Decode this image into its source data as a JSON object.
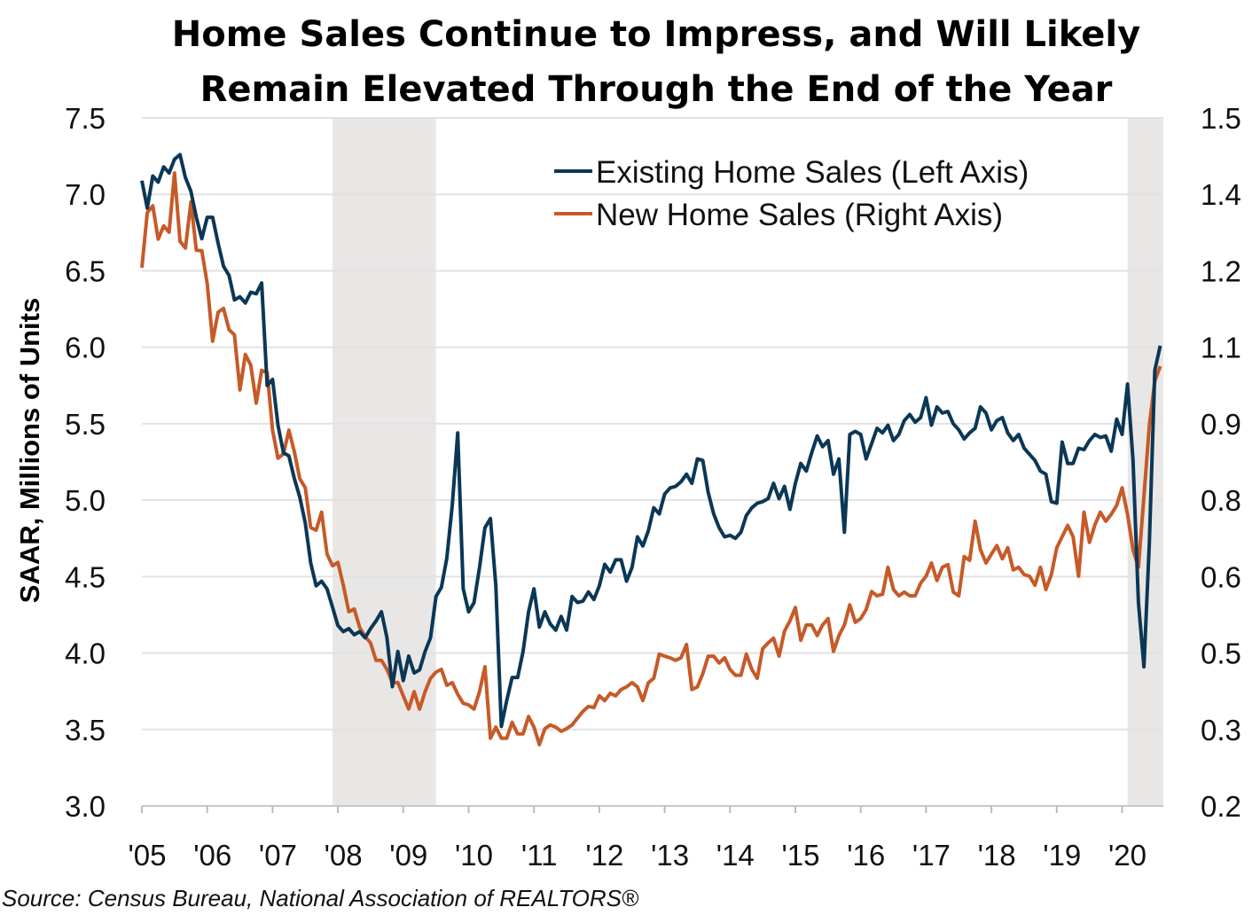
{
  "chart_data": {
    "type": "line",
    "title": [
      "Home Sales Continue to Impress, and Will Likely",
      "Remain Elevated Through the End of the Year"
    ],
    "ylabel": "SAAR, Millions of Units",
    "source": "Source: Census Bureau, National Association of REALTORS®",
    "ylim_left": [
      3.0,
      7.5
    ],
    "ylim_right": [
      0.2,
      1.5
    ],
    "left_ticks": [
      "7.5",
      "7.0",
      "6.5",
      "6.0",
      "5.5",
      "5.0",
      "4.5",
      "4.0",
      "3.5",
      "3.0"
    ],
    "right_ticks": [
      "1.5",
      "1.4",
      "1.2",
      "1.1",
      "0.9",
      "0.8",
      "0.6",
      "0.5",
      "0.3",
      "0.2"
    ],
    "x_ticks": [
      "'05",
      "'06",
      "'07",
      "'08",
      "'09",
      "'10",
      "'11",
      "'12",
      "'13",
      "'14",
      "'15",
      "'16",
      "'17",
      "'18",
      "'19",
      "'20"
    ],
    "grid": true,
    "legend_position": "top-right",
    "recessions": [
      [
        "2007-12",
        "2009-06"
      ],
      [
        "2020-02",
        "2020-08"
      ]
    ],
    "colors": {
      "existing": "#0b3756",
      "new": "#c65a28",
      "recession": "#e9e7e5",
      "grid": "#e2e2e2"
    },
    "x": [
      "2005-01",
      "2005-02",
      "2005-03",
      "2005-04",
      "2005-05",
      "2005-06",
      "2005-07",
      "2005-08",
      "2005-09",
      "2005-10",
      "2005-11",
      "2005-12",
      "2006-01",
      "2006-02",
      "2006-03",
      "2006-04",
      "2006-05",
      "2006-06",
      "2006-07",
      "2006-08",
      "2006-09",
      "2006-10",
      "2006-11",
      "2006-12",
      "2007-01",
      "2007-02",
      "2007-03",
      "2007-04",
      "2007-05",
      "2007-06",
      "2007-07",
      "2007-08",
      "2007-09",
      "2007-10",
      "2007-11",
      "2007-12",
      "2008-01",
      "2008-02",
      "2008-03",
      "2008-04",
      "2008-05",
      "2008-06",
      "2008-07",
      "2008-08",
      "2008-09",
      "2008-10",
      "2008-11",
      "2008-12",
      "2009-01",
      "2009-02",
      "2009-03",
      "2009-04",
      "2009-05",
      "2009-06",
      "2009-07",
      "2009-08",
      "2009-09",
      "2009-10",
      "2009-11",
      "2009-12",
      "2010-01",
      "2010-02",
      "2010-03",
      "2010-04",
      "2010-05",
      "2010-06",
      "2010-07",
      "2010-08",
      "2010-09",
      "2010-10",
      "2010-11",
      "2010-12",
      "2011-01",
      "2011-02",
      "2011-03",
      "2011-04",
      "2011-05",
      "2011-06",
      "2011-07",
      "2011-08",
      "2011-09",
      "2011-10",
      "2011-11",
      "2011-12",
      "2012-01",
      "2012-02",
      "2012-03",
      "2012-04",
      "2012-05",
      "2012-06",
      "2012-07",
      "2012-08",
      "2012-09",
      "2012-10",
      "2012-11",
      "2012-12",
      "2013-01",
      "2013-02",
      "2013-03",
      "2013-04",
      "2013-05",
      "2013-06",
      "2013-07",
      "2013-08",
      "2013-09",
      "2013-10",
      "2013-11",
      "2013-12",
      "2014-01",
      "2014-02",
      "2014-03",
      "2014-04",
      "2014-05",
      "2014-06",
      "2014-07",
      "2014-08",
      "2014-09",
      "2014-10",
      "2014-11",
      "2014-12",
      "2015-01",
      "2015-02",
      "2015-03",
      "2015-04",
      "2015-05",
      "2015-06",
      "2015-07",
      "2015-08",
      "2015-09",
      "2015-10",
      "2015-11",
      "2015-12",
      "2016-01",
      "2016-02",
      "2016-03",
      "2016-04",
      "2016-05",
      "2016-06",
      "2016-07",
      "2016-08",
      "2016-09",
      "2016-10",
      "2016-11",
      "2016-12",
      "2017-01",
      "2017-02",
      "2017-03",
      "2017-04",
      "2017-05",
      "2017-06",
      "2017-07",
      "2017-08",
      "2017-09",
      "2017-10",
      "2017-11",
      "2017-12",
      "2018-01",
      "2018-02",
      "2018-03",
      "2018-04",
      "2018-05",
      "2018-06",
      "2018-07",
      "2018-08",
      "2018-09",
      "2018-10",
      "2018-11",
      "2018-12",
      "2019-01",
      "2019-02",
      "2019-03",
      "2019-04",
      "2019-05",
      "2019-06",
      "2019-07",
      "2019-08",
      "2019-09",
      "2019-10",
      "2019-11",
      "2019-12",
      "2020-01",
      "2020-02",
      "2020-03",
      "2020-04",
      "2020-05",
      "2020-06",
      "2020-07",
      "2020-08"
    ],
    "series": [
      {
        "name": "Existing Home Sales (Left Axis)",
        "axis": "left",
        "values": [
          7.09,
          6.91,
          7.12,
          7.08,
          7.18,
          7.14,
          7.23,
          7.26,
          7.11,
          7.02,
          6.85,
          6.71,
          6.85,
          6.85,
          6.68,
          6.53,
          6.47,
          6.31,
          6.33,
          6.29,
          6.36,
          6.35,
          6.42,
          5.75,
          5.79,
          5.49,
          5.31,
          5.29,
          5.14,
          5.02,
          4.85,
          4.59,
          4.44,
          4.47,
          4.42,
          4.3,
          4.18,
          4.14,
          4.16,
          4.12,
          4.14,
          4.1,
          4.16,
          4.21,
          4.27,
          4.1,
          3.78,
          4.01,
          3.82,
          3.98,
          3.87,
          3.89,
          4.01,
          4.1,
          4.37,
          4.43,
          4.62,
          4.97,
          5.44,
          4.42,
          4.27,
          4.33,
          4.56,
          4.82,
          4.88,
          4.44,
          3.52,
          3.69,
          3.84,
          3.84,
          4.01,
          4.27,
          4.42,
          4.17,
          4.27,
          4.19,
          4.15,
          4.24,
          4.15,
          4.37,
          4.33,
          4.34,
          4.4,
          4.35,
          4.44,
          4.58,
          4.53,
          4.61,
          4.61,
          4.47,
          4.56,
          4.76,
          4.7,
          4.8,
          4.95,
          4.91,
          5.04,
          5.08,
          5.09,
          5.12,
          5.17,
          5.11,
          5.27,
          5.26,
          5.05,
          4.91,
          4.82,
          4.76,
          4.77,
          4.75,
          4.79,
          4.9,
          4.95,
          4.98,
          4.99,
          5.01,
          5.11,
          5.01,
          5.09,
          4.94,
          5.11,
          5.24,
          5.19,
          5.31,
          5.42,
          5.35,
          5.39,
          5.17,
          5.27,
          4.79,
          5.43,
          5.45,
          5.43,
          5.27,
          5.37,
          5.47,
          5.44,
          5.49,
          5.39,
          5.43,
          5.52,
          5.56,
          5.51,
          5.54,
          5.67,
          5.49,
          5.61,
          5.57,
          5.58,
          5.5,
          5.46,
          5.4,
          5.44,
          5.47,
          5.61,
          5.57,
          5.46,
          5.52,
          5.54,
          5.44,
          5.39,
          5.43,
          5.34,
          5.3,
          5.26,
          5.19,
          5.17,
          4.99,
          4.98,
          5.38,
          5.24,
          5.24,
          5.34,
          5.33,
          5.39,
          5.43,
          5.41,
          5.42,
          5.32,
          5.53,
          5.43,
          5.76,
          5.26,
          4.33,
          3.91,
          4.72,
          5.85,
          6.01
        ]
      },
      {
        "name": "New Home Sales (Right Axis)",
        "axis": "right",
        "values": [
          1.217,
          1.321,
          1.334,
          1.271,
          1.296,
          1.284,
          1.396,
          1.267,
          1.254,
          1.341,
          1.25,
          1.249,
          1.187,
          1.078,
          1.133,
          1.14,
          1.1,
          1.09,
          0.986,
          1.053,
          1.033,
          0.961,
          1.023,
          1.019,
          0.91,
          0.857,
          0.865,
          0.91,
          0.869,
          0.818,
          0.801,
          0.726,
          0.721,
          0.755,
          0.676,
          0.654,
          0.66,
          0.617,
          0.567,
          0.572,
          0.537,
          0.52,
          0.508,
          0.475,
          0.475,
          0.458,
          0.433,
          0.433,
          0.408,
          0.383,
          0.416,
          0.383,
          0.416,
          0.441,
          0.453,
          0.458,
          0.428,
          0.433,
          0.411,
          0.394,
          0.391,
          0.383,
          0.416,
          0.463,
          0.328,
          0.349,
          0.328,
          0.328,
          0.358,
          0.336,
          0.336,
          0.369,
          0.349,
          0.316,
          0.346,
          0.353,
          0.349,
          0.341,
          0.346,
          0.353,
          0.366,
          0.379,
          0.388,
          0.386,
          0.408,
          0.399,
          0.413,
          0.408,
          0.42,
          0.425,
          0.433,
          0.425,
          0.399,
          0.433,
          0.441,
          0.487,
          0.483,
          0.48,
          0.475,
          0.48,
          0.505,
          0.42,
          0.425,
          0.45,
          0.483,
          0.483,
          0.47,
          0.48,
          0.458,
          0.447,
          0.447,
          0.487,
          0.458,
          0.441,
          0.497,
          0.508,
          0.517,
          0.483,
          0.53,
          0.55,
          0.575,
          0.513,
          0.542,
          0.542,
          0.522,
          0.542,
          0.554,
          0.492,
          0.522,
          0.542,
          0.58,
          0.547,
          0.554,
          0.571,
          0.605,
          0.597,
          0.6,
          0.651,
          0.609,
          0.597,
          0.604,
          0.597,
          0.597,
          0.621,
          0.634,
          0.659,
          0.626,
          0.651,
          0.656,
          0.604,
          0.597,
          0.671,
          0.664,
          0.738,
          0.684,
          0.659,
          0.676,
          0.692,
          0.667,
          0.688,
          0.646,
          0.651,
          0.637,
          0.634,
          0.617,
          0.651,
          0.609,
          0.637,
          0.688,
          0.709,
          0.73,
          0.709,
          0.634,
          0.755,
          0.698,
          0.731,
          0.755,
          0.738,
          0.751,
          0.768,
          0.801,
          0.751,
          0.684,
          0.651,
          0.785,
          0.919,
          1.003,
          1.031
        ]
      }
    ]
  }
}
